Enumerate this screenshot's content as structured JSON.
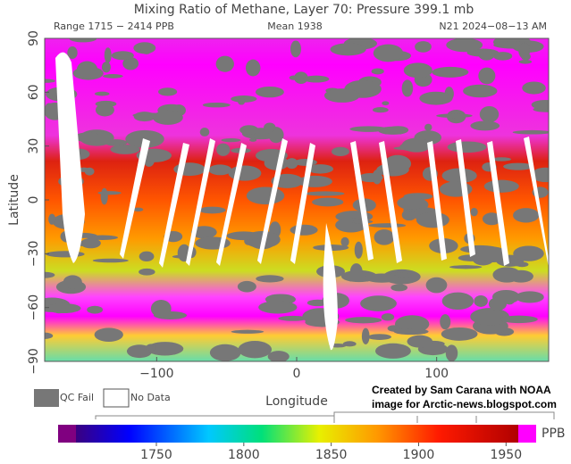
{
  "map": {
    "title": "Mixing Ratio of Methane, Layer 70: Pressure 399.1 mb",
    "range": "Range 1715 − 2414 PPB",
    "mean": "Mean 1938",
    "satellite": "N21 2024−08−13 AM",
    "xlabel": "Longitude",
    "ylabel": "Latitude",
    "xlim": [
      -180,
      180
    ],
    "ylim": [
      -90,
      90
    ],
    "xticks": [
      {
        "value": -100,
        "label": "−100"
      },
      0,
      100
    ],
    "yticks": [
      90,
      60,
      30,
      0,
      {
        "value": -30,
        "label": "−30"
      },
      {
        "value": -60,
        "label": "−60"
      },
      {
        "value": -90,
        "label": "−90"
      }
    ],
    "legend": [
      "QC Fail",
      "No Data"
    ],
    "credit": [
      "Created by Sam Carana with NOAA",
      "image for Arctic-news.blogspot.com"
    ],
    "colorbar": {
      "unit": "PPB",
      "clim": [
        1704,
        1957
      ],
      "ticks": [
        1750,
        1800,
        1850,
        1900,
        1950
      ]
    }
  }
}
